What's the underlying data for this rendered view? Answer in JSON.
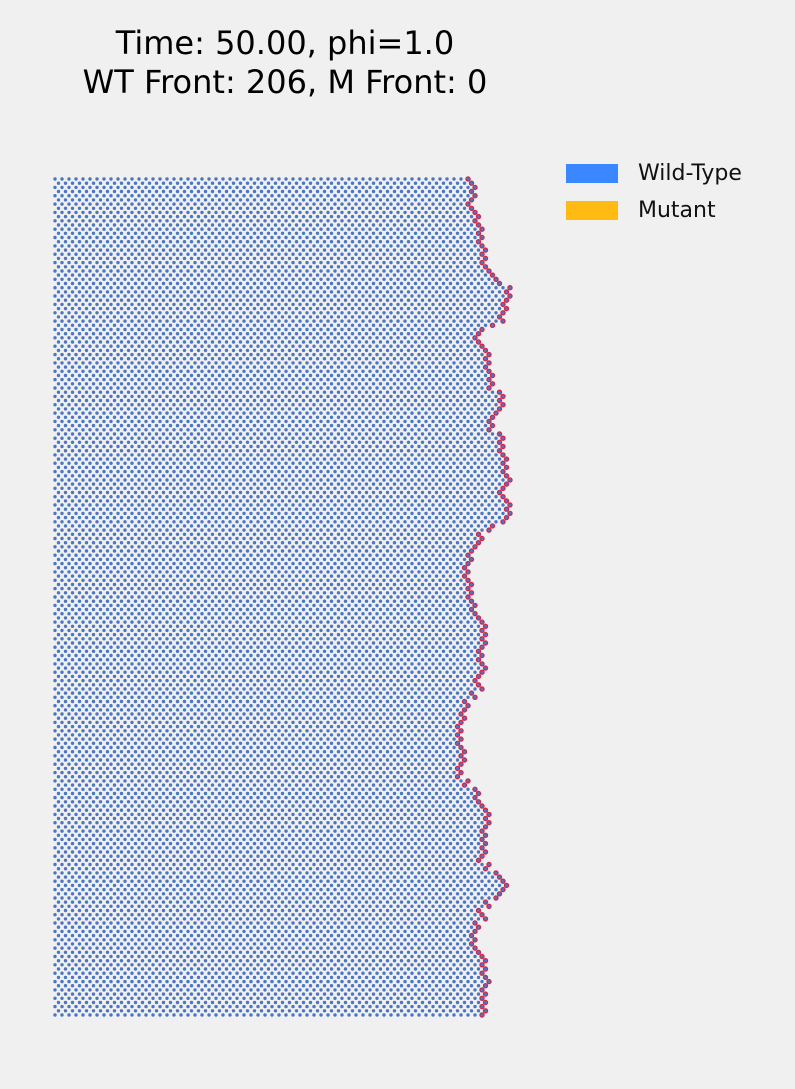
{
  "figure": {
    "title_line1": "Time: 50.00, phi=1.0",
    "title_line2": "WT Front: 206, M Front: 0"
  },
  "legend": [
    {
      "label": "Wild-Type",
      "color": "#3a87ff"
    },
    {
      "label": "Mutant",
      "color": "#ffbb11"
    }
  ],
  "colors": {
    "background": "#f0f0f0",
    "wild_type_cell": "#4a76c4",
    "front_cell_fill": "#4a76c4",
    "front_cell_edge": "#d0264a"
  },
  "simulation": {
    "time": 50.0,
    "phi": 1.0,
    "wt_front": 206,
    "mutant_front": 0
  }
}
